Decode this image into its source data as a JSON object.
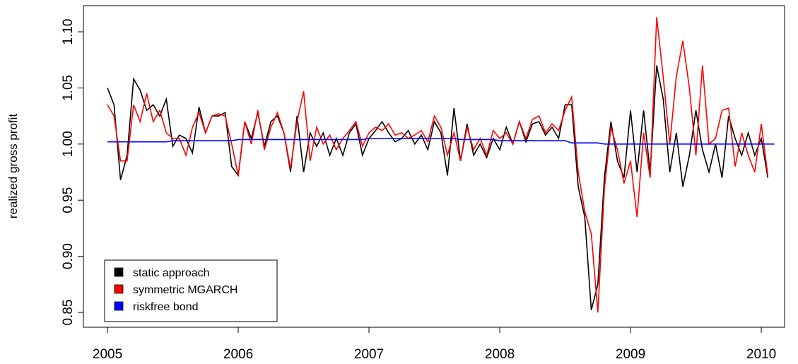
{
  "chart_data": {
    "type": "line",
    "ylabel": "realized gross profit",
    "x": [
      2005.0,
      2005.05,
      2005.1,
      2005.15,
      2005.2,
      2005.25,
      2005.3,
      2005.35,
      2005.4,
      2005.45,
      2005.5,
      2005.55,
      2005.6,
      2005.65,
      2005.7,
      2005.75,
      2005.8,
      2005.85,
      2005.9,
      2005.95,
      2006.0,
      2006.05,
      2006.1,
      2006.15,
      2006.2,
      2006.25,
      2006.3,
      2006.35,
      2006.4,
      2006.45,
      2006.5,
      2006.55,
      2006.6,
      2006.65,
      2006.7,
      2006.75,
      2006.8,
      2006.85,
      2006.9,
      2006.95,
      2007.0,
      2007.05,
      2007.1,
      2007.15,
      2007.2,
      2007.25,
      2007.3,
      2007.35,
      2007.4,
      2007.45,
      2007.5,
      2007.55,
      2007.6,
      2007.65,
      2007.7,
      2007.75,
      2007.8,
      2007.85,
      2007.9,
      2007.95,
      2008.0,
      2008.05,
      2008.1,
      2008.15,
      2008.2,
      2008.25,
      2008.3,
      2008.35,
      2008.4,
      2008.45,
      2008.5,
      2008.55,
      2008.6,
      2008.65,
      2008.7,
      2008.75,
      2008.8,
      2008.85,
      2008.9,
      2008.95,
      2009.0,
      2009.05,
      2009.1,
      2009.15,
      2009.2,
      2009.25,
      2009.3,
      2009.35,
      2009.4,
      2009.45,
      2009.5,
      2009.55,
      2009.6,
      2009.65,
      2009.7,
      2009.75,
      2009.8,
      2009.85,
      2009.9,
      2009.95,
      2010.0,
      2010.05,
      2010.1
    ],
    "series": [
      {
        "name": "static approach",
        "color": "#000000",
        "values": [
          1.05,
          1.035,
          0.968,
          0.99,
          1.058,
          1.048,
          1.03,
          1.035,
          1.025,
          1.04,
          0.998,
          1.008,
          1.005,
          0.992,
          1.033,
          1.01,
          1.025,
          1.025,
          1.028,
          0.98,
          0.972,
          1.02,
          1.005,
          1.028,
          0.998,
          1.02,
          1.025,
          1.01,
          0.975,
          1.025,
          0.975,
          1.01,
          0.998,
          1.01,
          0.99,
          1.005,
          0.99,
          1.01,
          1.018,
          0.99,
          1.005,
          1.012,
          1.02,
          1.01,
          1.002,
          1.005,
          1.012,
          1.0,
          1.008,
          0.995,
          1.02,
          1.01,
          0.972,
          1.032,
          0.985,
          1.018,
          0.99,
          1.0,
          0.988,
          1.005,
          0.995,
          1.015,
          1.0,
          1.02,
          1.002,
          1.018,
          1.02,
          1.008,
          1.015,
          1.005,
          1.035,
          1.035,
          0.962,
          0.935,
          0.852,
          0.875,
          0.97,
          1.02,
          0.985,
          0.97,
          1.03,
          0.975,
          1.03,
          0.975,
          1.07,
          1.04,
          0.975,
          1.01,
          0.962,
          0.99,
          1.03,
          0.995,
          0.975,
          1.0,
          0.97,
          1.025,
          1.005,
          0.99,
          1.01,
          0.99,
          1.005,
          0.97,
          null
        ]
      },
      {
        "name": "symmetric MGARCH",
        "color": "#ff0000",
        "values": [
          1.035,
          1.025,
          0.985,
          0.985,
          1.035,
          1.02,
          1.045,
          1.02,
          1.03,
          1.01,
          1.005,
          1.005,
          0.99,
          1.015,
          1.028,
          1.01,
          1.025,
          1.027,
          1.025,
          1.0,
          0.972,
          1.02,
          1.0,
          1.03,
          0.995,
          1.015,
          1.028,
          1.01,
          0.978,
          1.02,
          1.047,
          0.985,
          1.015,
          1.0,
          1.008,
          0.995,
          1.005,
          1.012,
          1.02,
          0.998,
          1.01,
          1.015,
          1.012,
          1.018,
          1.008,
          1.01,
          1.005,
          1.008,
          1.012,
          1.002,
          1.025,
          1.015,
          0.99,
          1.01,
          0.985,
          1.015,
          0.995,
          1.005,
          0.99,
          1.012,
          1.005,
          1.01,
          1.0,
          1.02,
          1.005,
          1.022,
          1.025,
          1.01,
          1.018,
          1.012,
          1.03,
          1.042,
          0.975,
          0.94,
          0.92,
          0.85,
          0.96,
          1.015,
          0.995,
          0.965,
          0.985,
          0.935,
          1.01,
          0.97,
          1.113,
          1.06,
          1.0,
          1.06,
          1.092,
          1.05,
          0.99,
          1.07,
          1.0,
          1.005,
          1.03,
          1.032,
          0.98,
          1.01,
          0.99,
          0.975,
          1.018,
          0.972,
          null
        ]
      },
      {
        "name": "riskfree bond",
        "color": "#0000ff",
        "values": [
          1.002,
          1.002,
          1.002,
          1.002,
          1.002,
          1.002,
          1.002,
          1.002,
          1.002,
          1.002,
          1.003,
          1.003,
          1.003,
          1.003,
          1.003,
          1.003,
          1.003,
          1.003,
          1.003,
          1.003,
          1.004,
          1.004,
          1.004,
          1.004,
          1.004,
          1.004,
          1.004,
          1.004,
          1.004,
          1.004,
          1.004,
          1.004,
          1.004,
          1.004,
          1.004,
          1.004,
          1.004,
          1.004,
          1.004,
          1.004,
          1.005,
          1.005,
          1.005,
          1.005,
          1.005,
          1.005,
          1.005,
          1.005,
          1.005,
          1.005,
          1.005,
          1.005,
          1.005,
          1.005,
          1.004,
          1.004,
          1.004,
          1.004,
          1.004,
          1.004,
          1.003,
          1.003,
          1.003,
          1.003,
          1.003,
          1.003,
          1.003,
          1.003,
          1.003,
          1.003,
          1.003,
          1.001,
          1.001,
          1.001,
          1.001,
          1.001,
          1.0,
          1.0,
          1.0,
          1.0,
          1.0,
          1.0,
          1.0,
          1.0,
          1.0,
          1.0,
          1.0,
          1.0,
          1.0,
          1.0,
          1.0,
          1.0,
          1.0,
          1.0,
          1.0,
          1.0,
          1.0,
          1.0,
          1.0,
          1.0,
          1.0,
          1.0,
          1.0
        ]
      }
    ],
    "xlim": [
      2004.816,
      2010.178
    ],
    "xticks": [
      2005,
      2006,
      2007,
      2008,
      2009,
      2010
    ],
    "ylim": [
      0.8368,
      1.1233
    ],
    "yticks": [
      0.85,
      {
        "value": 0.9,
        "label": "0.90"
      },
      0.95,
      {
        "value": 1.0,
        "label": "1.00"
      },
      1.05,
      {
        "value": 1.1,
        "label": "1.10"
      }
    ],
    "legend": "bottom-left"
  }
}
